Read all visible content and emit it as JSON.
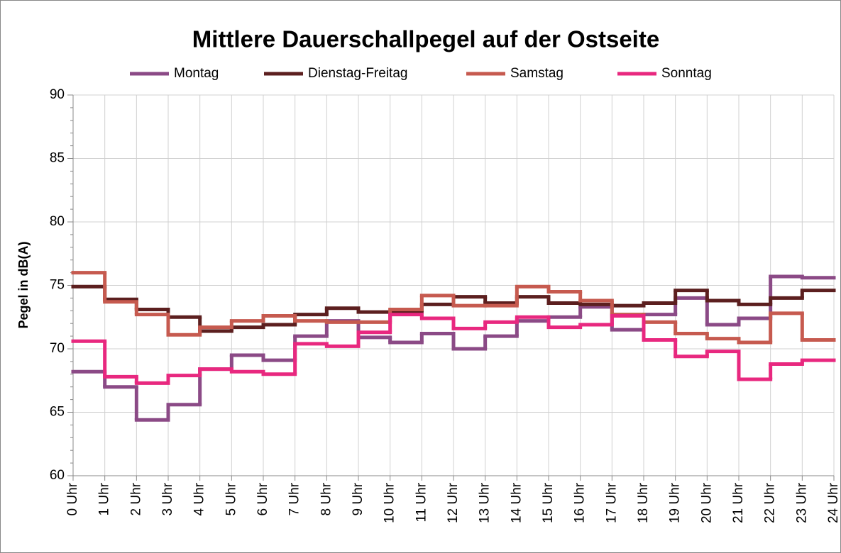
{
  "chart_data": {
    "type": "line",
    "step": "post",
    "title": "Mittlere Dauerschallpegel auf der Ostseite",
    "ylabel": "Pegel in dB(A)",
    "x": [
      0,
      1,
      2,
      3,
      4,
      5,
      6,
      7,
      8,
      9,
      10,
      11,
      12,
      13,
      14,
      15,
      16,
      17,
      18,
      19,
      20,
      21,
      22,
      23
    ],
    "xlim": [
      0,
      24
    ],
    "xticks": [
      {
        "value": 0,
        "label": "0 Uhr"
      },
      {
        "value": 1,
        "label": "1 Uhr"
      },
      {
        "value": 2,
        "label": "2 Uhr"
      },
      {
        "value": 3,
        "label": "3 Uhr"
      },
      {
        "value": 4,
        "label": "4 Uhr"
      },
      {
        "value": 5,
        "label": "5 Uhr"
      },
      {
        "value": 6,
        "label": "6 Uhr"
      },
      {
        "value": 7,
        "label": "7 Uhr"
      },
      {
        "value": 8,
        "label": "8 Uhr"
      },
      {
        "value": 9,
        "label": "9 Uhr"
      },
      {
        "value": 10,
        "label": "10 Uhr"
      },
      {
        "value": 11,
        "label": "11 Uhr"
      },
      {
        "value": 12,
        "label": "12 Uhr"
      },
      {
        "value": 13,
        "label": "13 Uhr"
      },
      {
        "value": 14,
        "label": "14 Uhr"
      },
      {
        "value": 15,
        "label": "15 Uhr"
      },
      {
        "value": 16,
        "label": "16 Uhr"
      },
      {
        "value": 17,
        "label": "17 Uhr"
      },
      {
        "value": 18,
        "label": "18 Uhr"
      },
      {
        "value": 19,
        "label": "19 Uhr"
      },
      {
        "value": 20,
        "label": "20 Uhr"
      },
      {
        "value": 21,
        "label": "21 Uhr"
      },
      {
        "value": 22,
        "label": "22 Uhr"
      },
      {
        "value": 23,
        "label": "23 Uhr"
      },
      {
        "value": 24,
        "label": "24 Uhr"
      }
    ],
    "ylim": [
      60,
      90
    ],
    "yticks": [
      60,
      65,
      70,
      75,
      80,
      85,
      90
    ],
    "grid": true,
    "legend": "top",
    "series": [
      {
        "name": "Montag",
        "color": "#8b4a86",
        "values": [
          68.2,
          67.0,
          64.4,
          65.6,
          68.4,
          69.5,
          69.1,
          71.0,
          72.2,
          70.9,
          70.5,
          71.2,
          70.0,
          71.0,
          72.2,
          72.5,
          73.3,
          71.5,
          72.7,
          74.0,
          71.9,
          72.4,
          75.7,
          75.6
        ]
      },
      {
        "name": "Dienstag-Freitag",
        "color": "#5c1f1f",
        "values": [
          74.9,
          73.9,
          73.1,
          72.5,
          71.4,
          71.7,
          71.9,
          72.7,
          73.2,
          72.9,
          72.9,
          73.5,
          74.1,
          73.6,
          74.1,
          73.6,
          73.5,
          73.4,
          73.6,
          74.6,
          73.8,
          73.5,
          74.0,
          74.6
        ]
      },
      {
        "name": "Samstag",
        "color": "#c65a4f",
        "values": [
          76.0,
          73.7,
          72.7,
          71.1,
          71.7,
          72.2,
          72.6,
          72.2,
          72.1,
          72.1,
          73.1,
          74.2,
          73.4,
          73.4,
          74.9,
          74.5,
          73.8,
          72.7,
          72.1,
          71.2,
          70.8,
          70.5,
          72.8,
          70.7
        ]
      },
      {
        "name": "Sonntag",
        "color": "#e8287f",
        "values": [
          70.6,
          67.8,
          67.3,
          67.9,
          68.4,
          68.2,
          68.0,
          70.4,
          70.2,
          71.3,
          72.7,
          72.4,
          71.6,
          72.1,
          72.5,
          71.7,
          71.9,
          72.6,
          70.7,
          69.4,
          69.8,
          67.6,
          68.8,
          69.1
        ]
      }
    ]
  }
}
